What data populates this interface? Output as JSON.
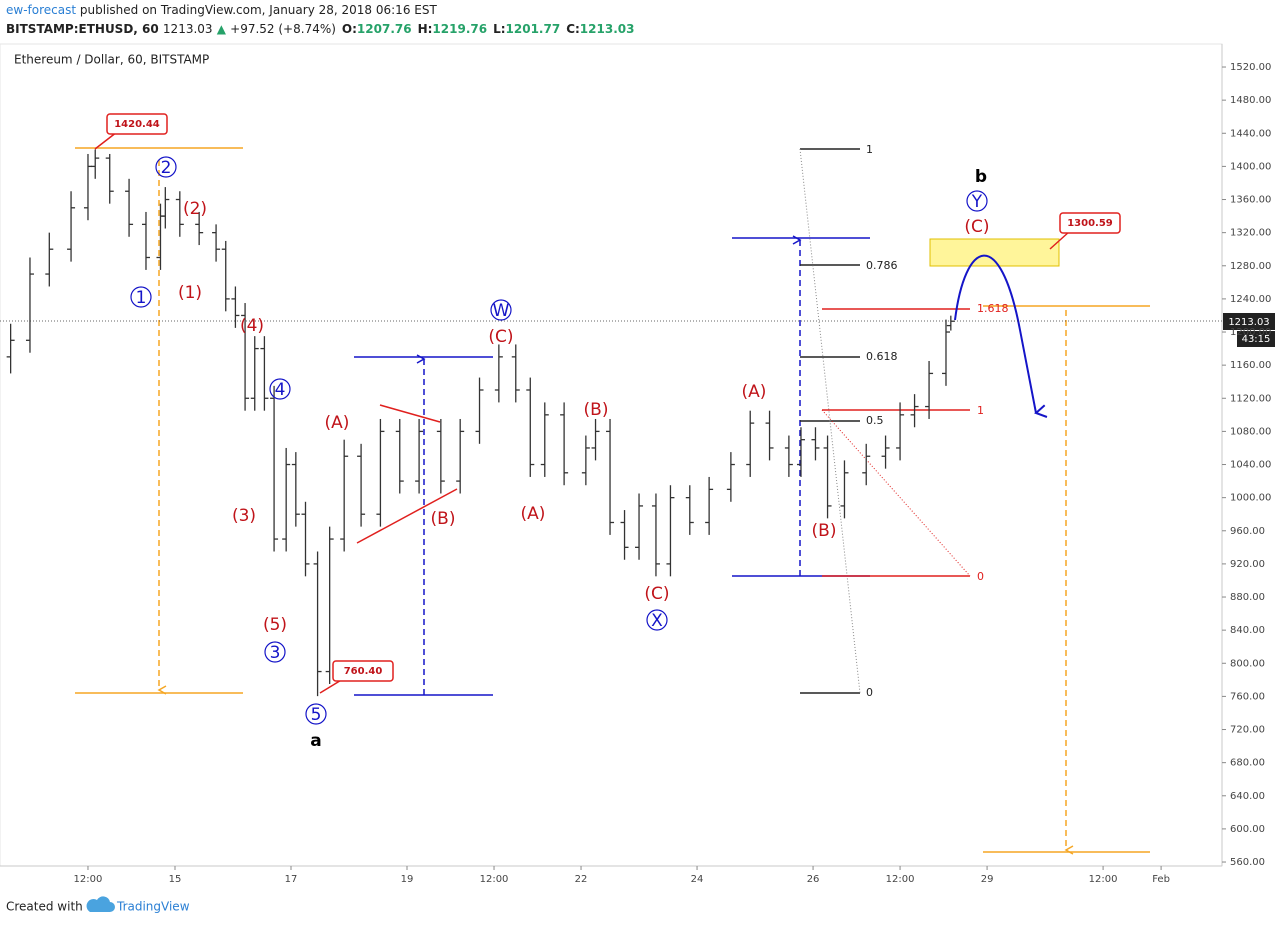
{
  "header": {
    "author": "ew-forecast",
    "published": "published on TradingView.com, January 28, 2018 06:16 EST",
    "symbol": "BITSTAMP:ETHUSD, 60",
    "price": "1213.03",
    "change": "+97.52 (+8.74%)",
    "ohlc": [
      {
        "label": "O:",
        "value": "1207.76"
      },
      {
        "label": "H:",
        "value": "1219.76"
      },
      {
        "label": "L:",
        "value": "1201.77"
      },
      {
        "label": "C:",
        "value": "1213.03"
      }
    ]
  },
  "chart_data": {
    "type": "ohlc",
    "title": "Ethereum / Dollar, 60, BITSTAMP",
    "x": [
      -20,
      -12,
      -4,
      5,
      12,
      15,
      21,
      29,
      36,
      42,
      44,
      50,
      58,
      65,
      69,
      73,
      77,
      81,
      85,
      89,
      94,
      98,
      102,
      107,
      112,
      118,
      125,
      133,
      141,
      149,
      158,
      166,
      174,
      182,
      189,
      195,
      201,
      209,
      218,
      222,
      228,
      234,
      240,
      247,
      253,
      261,
      269,
      278,
      286,
      294,
      302,
      307,
      313,
      318,
      325,
      334,
      342,
      348,
      354,
      360,
      367,
      369
    ],
    "open": [
      1170,
      1190,
      1270,
      1300,
      1350,
      1400,
      1410,
      1370,
      1330,
      1290,
      1340,
      1360,
      1330,
      1320,
      1300,
      1240,
      1220,
      1120,
      1180,
      1120,
      950,
      1040,
      980,
      920,
      790,
      950,
      1050,
      980,
      1080,
      1020,
      1080,
      1020,
      1080,
      1130,
      1170,
      1130,
      1040,
      1100,
      1030,
      1060,
      1080,
      970,
      940,
      990,
      920,
      1000,
      970,
      1010,
      1040,
      1090,
      1060,
      1040,
      1070,
      1060,
      990,
      1030,
      1050,
      1060,
      1100,
      1110,
      1150,
      1207.76
    ],
    "high": [
      1210,
      1290,
      1320,
      1370,
      1415,
      1420.44,
      1415,
      1385,
      1345,
      1355,
      1375,
      1370,
      1345,
      1330,
      1310,
      1255,
      1235,
      1195,
      1195,
      1135,
      1060,
      1055,
      995,
      935,
      965,
      1070,
      1065,
      1095,
      1095,
      1095,
      1095,
      1095,
      1145,
      1185,
      1185,
      1145,
      1115,
      1115,
      1075,
      1095,
      1095,
      985,
      1005,
      1005,
      1015,
      1015,
      1025,
      1055,
      1105,
      1105,
      1075,
      1085,
      1085,
      1075,
      1045,
      1065,
      1075,
      1115,
      1125,
      1165,
      1215,
      1219.76
    ],
    "low": [
      1150,
      1175,
      1255,
      1285,
      1335,
      1385,
      1355,
      1315,
      1275,
      1275,
      1325,
      1315,
      1305,
      1285,
      1225,
      1205,
      1105,
      1105,
      1105,
      935,
      935,
      965,
      905,
      760.4,
      775,
      935,
      965,
      965,
      1005,
      1005,
      1005,
      1005,
      1065,
      1115,
      1115,
      1025,
      1025,
      1015,
      1015,
      1045,
      955,
      925,
      925,
      905,
      905,
      955,
      955,
      995,
      1025,
      1045,
      1025,
      1025,
      1045,
      975,
      975,
      1015,
      1035,
      1045,
      1085,
      1095,
      1135,
      1201.77
    ],
    "close": [
      1190,
      1270,
      1300,
      1350,
      1400,
      1410,
      1370,
      1330,
      1290,
      1340,
      1360,
      1330,
      1320,
      1300,
      1240,
      1220,
      1120,
      1180,
      1120,
      950,
      1040,
      980,
      920,
      790,
      950,
      1050,
      980,
      1080,
      1020,
      1080,
      1020,
      1080,
      1130,
      1170,
      1130,
      1040,
      1100,
      1030,
      1060,
      1080,
      970,
      940,
      990,
      920,
      1000,
      970,
      1010,
      1040,
      1090,
      1060,
      1040,
      1070,
      1060,
      990,
      1030,
      1050,
      1060,
      1100,
      1110,
      1150,
      1200,
      1213.03
    ],
    "color": "#333333",
    "xlim": [
      -24.4,
      481.2
    ],
    "xticks": [
      {
        "value": 12,
        "label": "12:00"
      },
      {
        "value": 48,
        "label": "15"
      },
      {
        "value": 96,
        "label": "17"
      },
      {
        "value": 144,
        "label": "19"
      },
      {
        "value": 180,
        "label": "12:00"
      },
      {
        "value": 216,
        "label": "22"
      },
      {
        "value": 264,
        "label": "24"
      },
      {
        "value": 312,
        "label": "26"
      },
      {
        "value": 348,
        "label": "12:00"
      },
      {
        "value": 384,
        "label": "29"
      },
      {
        "value": 432,
        "label": "12:00"
      },
      {
        "value": 456,
        "label": "Feb"
      }
    ],
    "ylim": [
      555.2,
      1547.8
    ],
    "yticks": [
      {
        "value": 560,
        "label": "560.00"
      },
      {
        "value": 600,
        "label": "600.00"
      },
      {
        "value": 640,
        "label": "640.00"
      },
      {
        "value": 680,
        "label": "680.00"
      },
      {
        "value": 720,
        "label": "720.00"
      },
      {
        "value": 760,
        "label": "760.00"
      },
      {
        "value": 800,
        "label": "800.00"
      },
      {
        "value": 840,
        "label": "840.00"
      },
      {
        "value": 880,
        "label": "880.00"
      },
      {
        "value": 920,
        "label": "920.00"
      },
      {
        "value": 960,
        "label": "960.00"
      },
      {
        "value": 1000,
        "label": "1000.00"
      },
      {
        "value": 1040,
        "label": "1040.00"
      },
      {
        "value": 1080,
        "label": "1080.00"
      },
      {
        "value": 1120,
        "label": "1120.00"
      },
      {
        "value": 1160,
        "label": "1160.00"
      },
      {
        "value": 1200,
        "label": "1200.00"
      },
      {
        "value": 1240,
        "label": "1240.00"
      },
      {
        "value": 1280,
        "label": "1280.00"
      },
      {
        "value": 1320,
        "label": "1320.00"
      },
      {
        "value": 1360,
        "label": "1360.00"
      },
      {
        "value": 1400,
        "label": "1400.00"
      },
      {
        "value": 1440,
        "label": "1440.00"
      },
      {
        "value": 1480,
        "label": "1480.00"
      },
      {
        "value": 1520,
        "label": "1520.00"
      }
    ],
    "last_price": {
      "value": 1213.03,
      "label": "1213.03"
    },
    "countdown": "43:15",
    "callouts": [
      "1420.44",
      "760.40",
      "1300.59"
    ],
    "wave_labels": [
      "1",
      "2",
      "(2)",
      "(1)",
      "(4)",
      "4",
      "(3)",
      "(5)",
      "3",
      "5",
      "a",
      "(A)",
      "(B)",
      "W",
      "(C)",
      "(A)",
      "(B)",
      "(C)",
      "X",
      "(A)",
      "(B)",
      "b",
      "Y",
      "(C)"
    ],
    "fib_labels": [
      "1",
      "0.786",
      "0.618",
      "0.5",
      "0",
      "1.618",
      "1",
      "0"
    ]
  },
  "footer": {
    "created": "Created with",
    "brand": "TradingView"
  }
}
